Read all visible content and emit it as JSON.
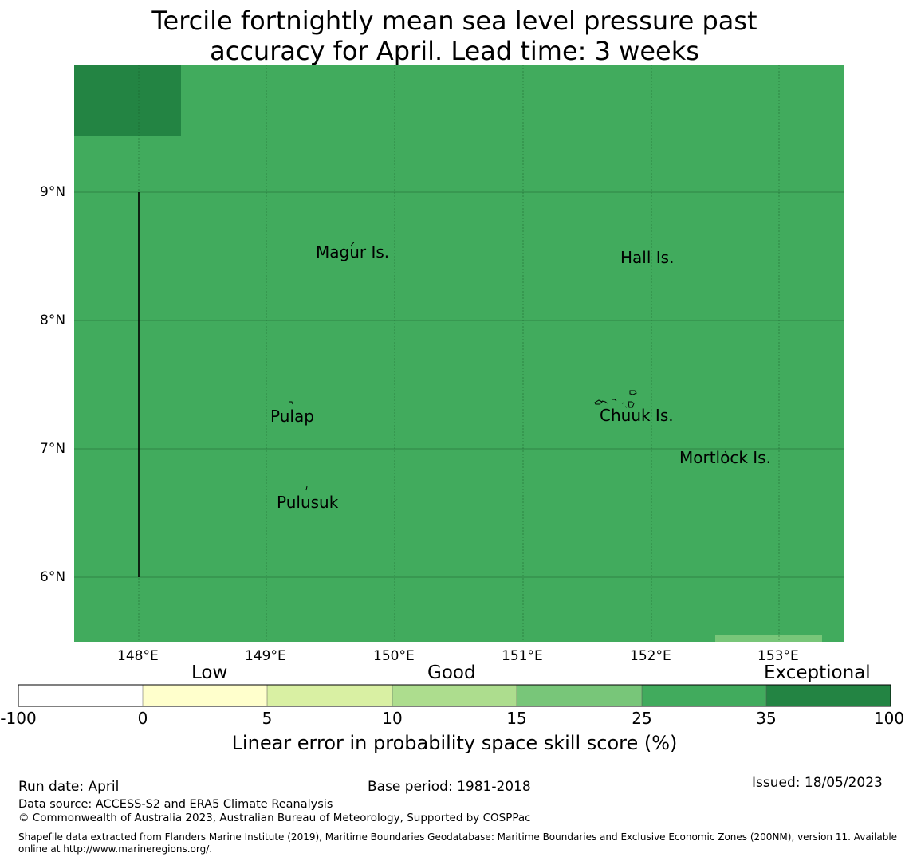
{
  "title": {
    "line1": "Tercile fortnightly mean sea level pressure past",
    "line2": "accuracy for April. Lead time: 3 weeks"
  },
  "map": {
    "lat_ticks": [
      "9°N",
      "8°N",
      "7°N",
      "6°N"
    ],
    "lon_ticks": [
      "148°E",
      "149°E",
      "150°E",
      "151°E",
      "152°E",
      "153°E"
    ],
    "lon_range": [
      147.5,
      153.5
    ],
    "lat_range": [
      5.5,
      10.0
    ],
    "background_category": "25 to 35",
    "background_color": "#41ab5d",
    "places": [
      {
        "name": "Magur Is."
      },
      {
        "name": "Hall Is."
      },
      {
        "name": "Pulap"
      },
      {
        "name": "Chuuk Is."
      },
      {
        "name": "Mortlock Is."
      },
      {
        "name": "Pulusuk"
      }
    ]
  },
  "legend": {
    "categories": [
      "Low",
      "Good",
      "Exceptional"
    ],
    "ticks": [
      "-100",
      "0",
      "5",
      "10",
      "15",
      "25",
      "35",
      "100"
    ],
    "colors": [
      "#ffffff",
      "#ffffcc",
      "#d9f0a3",
      "#addd8e",
      "#78c679",
      "#41ab5d",
      "#238443"
    ],
    "label": "Linear error in probability space skill score (%)"
  },
  "footer": {
    "run_date": "Run date: April",
    "base_period": "Base period: 1981-2018",
    "issued": "Issued: 18/05/2023",
    "data_source": "Data source: ACCESS-S2 and ERA5 Climate Reanalysis",
    "copyright": "© Commonwealth of Australia 2023, Australian Bureau of Meteorology, Supported by COSPPac",
    "shapefile": "Shapefile data extracted from Flanders Marine Institute (2019), Maritime Boundaries Geodatabase: Maritime Boundaries and Exclusive Economic Zones (200NM), version 11. Available online at http://www.marineregions.org/."
  }
}
